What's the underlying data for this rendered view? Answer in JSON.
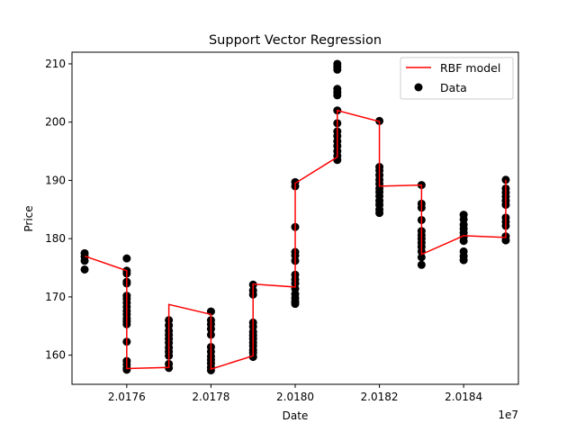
{
  "chart_data": {
    "type": "scatter",
    "title": "Support Vector Regression",
    "xlabel": "Date",
    "ylabel": "Price",
    "x_offset_label": "1e7",
    "xlim": [
      20174700,
      20185300
    ],
    "ylim": [
      155,
      212
    ],
    "x_ticks": [
      20176000,
      20178000,
      20180000,
      20182000,
      20184000
    ],
    "x_tick_labels": [
      "2.0176",
      "2.0178",
      "2.0180",
      "2.0182",
      "2.0184"
    ],
    "y_ticks": [
      160,
      170,
      180,
      190,
      200,
      210
    ],
    "y_tick_labels": [
      "160",
      "170",
      "180",
      "190",
      "200",
      "210"
    ],
    "grid": false,
    "legend_position": "top-right",
    "colors": {
      "model": "#ff0000",
      "data": "#000000"
    },
    "series": [
      {
        "name": "RBF model",
        "kind": "line",
        "color": "#ff0000",
        "points": [
          [
            20175000,
            177.0
          ],
          [
            20176000,
            174.5
          ],
          [
            20176000,
            157.7
          ],
          [
            20177000,
            157.9
          ],
          [
            20177000,
            168.7
          ],
          [
            20178000,
            167.0
          ],
          [
            20178000,
            157.6
          ],
          [
            20179000,
            159.9
          ],
          [
            20179000,
            172.2
          ],
          [
            20180000,
            171.7
          ],
          [
            20180000,
            189.5
          ],
          [
            20181000,
            194.0
          ],
          [
            20181000,
            202.0
          ],
          [
            20182000,
            200.1
          ],
          [
            20182000,
            189.0
          ],
          [
            20183000,
            189.2
          ],
          [
            20183000,
            177.3
          ],
          [
            20184000,
            180.5
          ],
          [
            20184000,
            180.5
          ],
          [
            20185000,
            180.2
          ],
          [
            20185000,
            190.1
          ]
        ]
      },
      {
        "name": "Data",
        "kind": "scatter",
        "color": "#000000",
        "points": [
          [
            20175000,
            177.5
          ],
          [
            20175000,
            176.9
          ],
          [
            20175000,
            176.2
          ],
          [
            20175000,
            174.7
          ],
          [
            20176000,
            176.6
          ],
          [
            20176000,
            174.5
          ],
          [
            20176000,
            174.0
          ],
          [
            20176000,
            172.6
          ],
          [
            20176000,
            172.3
          ],
          [
            20176000,
            170.2
          ],
          [
            20176000,
            169.7
          ],
          [
            20176000,
            169.0
          ],
          [
            20176000,
            168.3
          ],
          [
            20176000,
            167.6
          ],
          [
            20176000,
            167.0
          ],
          [
            20176000,
            166.3
          ],
          [
            20176000,
            165.8
          ],
          [
            20176000,
            165.3
          ],
          [
            20176000,
            162.3
          ],
          [
            20176000,
            159.0
          ],
          [
            20176000,
            158.4
          ],
          [
            20176000,
            157.8
          ],
          [
            20176000,
            157.5
          ],
          [
            20177000,
            166.0
          ],
          [
            20177000,
            165.1
          ],
          [
            20177000,
            164.2
          ],
          [
            20177000,
            163.5
          ],
          [
            20177000,
            162.8
          ],
          [
            20177000,
            162.1
          ],
          [
            20177000,
            161.3
          ],
          [
            20177000,
            160.6
          ],
          [
            20177000,
            159.9
          ],
          [
            20177000,
            158.5
          ],
          [
            20177000,
            157.8
          ],
          [
            20178000,
            167.5
          ],
          [
            20178000,
            166.0
          ],
          [
            20178000,
            165.3
          ],
          [
            20178000,
            164.5
          ],
          [
            20178000,
            163.5
          ],
          [
            20178000,
            161.4
          ],
          [
            20178000,
            160.6
          ],
          [
            20178000,
            159.8
          ],
          [
            20178000,
            159.2
          ],
          [
            20178000,
            158.6
          ],
          [
            20178000,
            157.9
          ],
          [
            20178000,
            157.4
          ],
          [
            20179000,
            172.1
          ],
          [
            20179000,
            171.1
          ],
          [
            20179000,
            170.4
          ],
          [
            20179000,
            165.6
          ],
          [
            20179000,
            164.9
          ],
          [
            20179000,
            164.0
          ],
          [
            20179000,
            163.4
          ],
          [
            20179000,
            162.8
          ],
          [
            20179000,
            162.2
          ],
          [
            20179000,
            161.6
          ],
          [
            20179000,
            160.9
          ],
          [
            20179000,
            160.4
          ],
          [
            20179000,
            159.7
          ],
          [
            20180000,
            189.7
          ],
          [
            20180000,
            189.0
          ],
          [
            20180000,
            182.0
          ],
          [
            20180000,
            177.7
          ],
          [
            20180000,
            177.1
          ],
          [
            20180000,
            176.2
          ],
          [
            20180000,
            173.8
          ],
          [
            20180000,
            173.0
          ],
          [
            20180000,
            172.3
          ],
          [
            20180000,
            171.4
          ],
          [
            20180000,
            170.5
          ],
          [
            20180000,
            169.8
          ],
          [
            20180000,
            169.2
          ],
          [
            20180000,
            168.8
          ],
          [
            20181000,
            210.0
          ],
          [
            20181000,
            209.5
          ],
          [
            20181000,
            209.0
          ],
          [
            20181000,
            205.7
          ],
          [
            20181000,
            205.1
          ],
          [
            20181000,
            204.6
          ],
          [
            20181000,
            202.0
          ],
          [
            20181000,
            199.8
          ],
          [
            20181000,
            198.4
          ],
          [
            20181000,
            197.6
          ],
          [
            20181000,
            196.7
          ],
          [
            20181000,
            195.9
          ],
          [
            20181000,
            195.0
          ],
          [
            20181000,
            194.2
          ],
          [
            20181000,
            193.5
          ],
          [
            20182000,
            200.2
          ],
          [
            20182000,
            192.3
          ],
          [
            20182000,
            191.7
          ],
          [
            20182000,
            190.9
          ],
          [
            20182000,
            190.1
          ],
          [
            20182000,
            189.4
          ],
          [
            20182000,
            188.6
          ],
          [
            20182000,
            188.0
          ],
          [
            20182000,
            187.3
          ],
          [
            20182000,
            186.5
          ],
          [
            20182000,
            185.8
          ],
          [
            20182000,
            185.0
          ],
          [
            20182000,
            184.4
          ],
          [
            20183000,
            189.2
          ],
          [
            20183000,
            186.0
          ],
          [
            20183000,
            185.3
          ],
          [
            20183000,
            183.2
          ],
          [
            20183000,
            181.3
          ],
          [
            20183000,
            180.6
          ],
          [
            20183000,
            180.0
          ],
          [
            20183000,
            179.3
          ],
          [
            20183000,
            178.6
          ],
          [
            20183000,
            177.8
          ],
          [
            20183000,
            176.8
          ],
          [
            20183000,
            175.5
          ],
          [
            20184000,
            184.1
          ],
          [
            20184000,
            183.3
          ],
          [
            20184000,
            182.4
          ],
          [
            20184000,
            181.7
          ],
          [
            20184000,
            181.0
          ],
          [
            20184000,
            180.3
          ],
          [
            20184000,
            179.6
          ],
          [
            20184000,
            177.8
          ],
          [
            20184000,
            177.0
          ],
          [
            20184000,
            176.3
          ],
          [
            20185000,
            190.1
          ],
          [
            20185000,
            188.6
          ],
          [
            20185000,
            187.9
          ],
          [
            20185000,
            187.2
          ],
          [
            20185000,
            186.5
          ],
          [
            20185000,
            185.8
          ],
          [
            20185000,
            183.6
          ],
          [
            20185000,
            182.9
          ],
          [
            20185000,
            182.2
          ],
          [
            20185000,
            180.4
          ],
          [
            20185000,
            179.7
          ]
        ]
      }
    ]
  }
}
